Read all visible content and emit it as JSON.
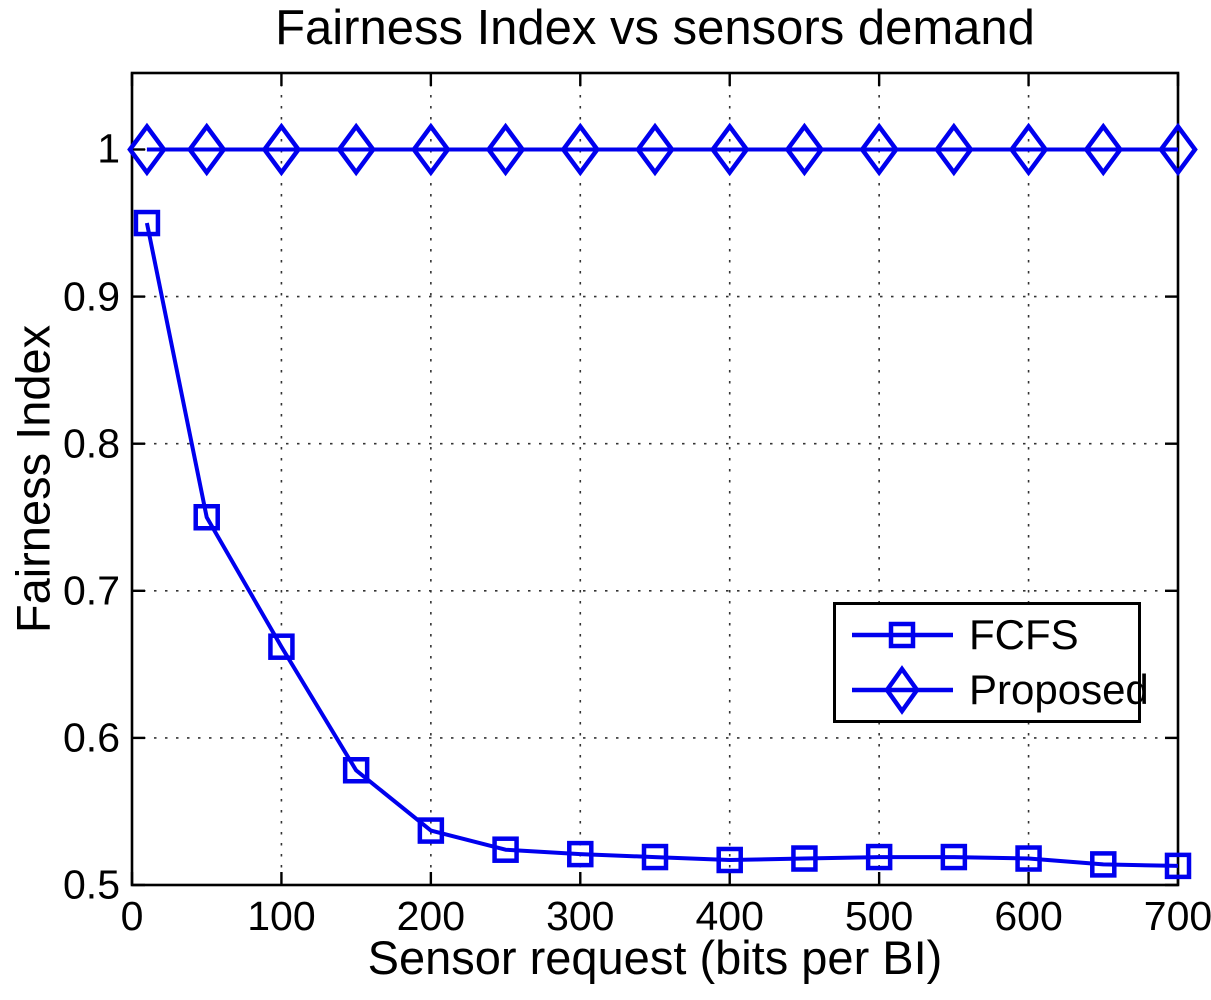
{
  "figure_title": "Fairness Index vs sensors demand",
  "chart_data": {
    "type": "line",
    "title": "Fairness Index vs sensors demand",
    "xlabel": "Sensor request (bits per BI)",
    "ylabel": "Fairness Index",
    "xlim": [
      0,
      700
    ],
    "ylim": [
      0.5,
      1.052
    ],
    "xticks": [
      0,
      100,
      200,
      300,
      400,
      500,
      600,
      700
    ],
    "yticks": [
      0.5,
      0.6,
      0.7,
      0.8,
      0.9,
      1
    ],
    "grid": true,
    "grid_style": "dotted",
    "x": [
      10,
      50,
      100,
      150,
      200,
      250,
      300,
      350,
      400,
      450,
      500,
      550,
      600,
      650,
      700
    ],
    "series": [
      {
        "name": "FCFS",
        "marker": "square",
        "color": "#0000EE",
        "values": [
          0.95,
          0.75,
          0.662,
          0.578,
          0.537,
          0.524,
          0.521,
          0.519,
          0.517,
          0.518,
          0.519,
          0.519,
          0.518,
          0.514,
          0.513
        ]
      },
      {
        "name": "Proposed",
        "marker": "diamond",
        "color": "#0000EE",
        "values": [
          1,
          1,
          1,
          1,
          1,
          1,
          1,
          1,
          1,
          1,
          1,
          1,
          1,
          1,
          1
        ]
      }
    ],
    "legend": {
      "position": "right-middle",
      "entries": [
        "FCFS",
        "Proposed"
      ]
    },
    "colors": {
      "line": "#0000EE",
      "axis": "#000000",
      "grid": "#333333",
      "background": "#ffffff"
    }
  }
}
